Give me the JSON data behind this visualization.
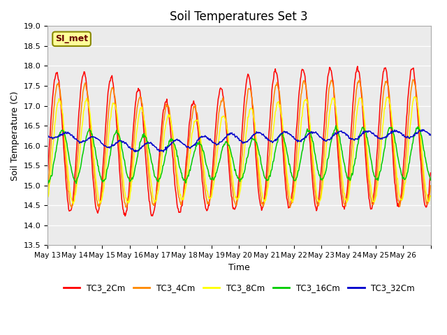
{
  "title": "Soil Temperatures Set 3",
  "xlabel": "Time",
  "ylabel": "Soil Temperature (C)",
  "ylim": [
    13.5,
    19.0
  ],
  "series_names": [
    "TC3_2Cm",
    "TC3_4Cm",
    "TC3_8Cm",
    "TC3_16Cm",
    "TC3_32Cm"
  ],
  "series_colors": [
    "#ff0000",
    "#ff8800",
    "#ffff00",
    "#00cc00",
    "#0000cc"
  ],
  "annotation_text": "SI_met",
  "annotation_bg": "#ffff99",
  "annotation_border": "#888800",
  "plot_bg": "#ebebeb",
  "x_tick_labels": [
    "May 13",
    "May 14",
    "May 15",
    "May 16",
    "May 17",
    "May 18",
    "May 19",
    "May 20",
    "May 21",
    "May 22",
    "May 23",
    "May 24",
    "May 25",
    "May 26",
    ""
  ],
  "n_days": 14,
  "pts_per_day": 48
}
